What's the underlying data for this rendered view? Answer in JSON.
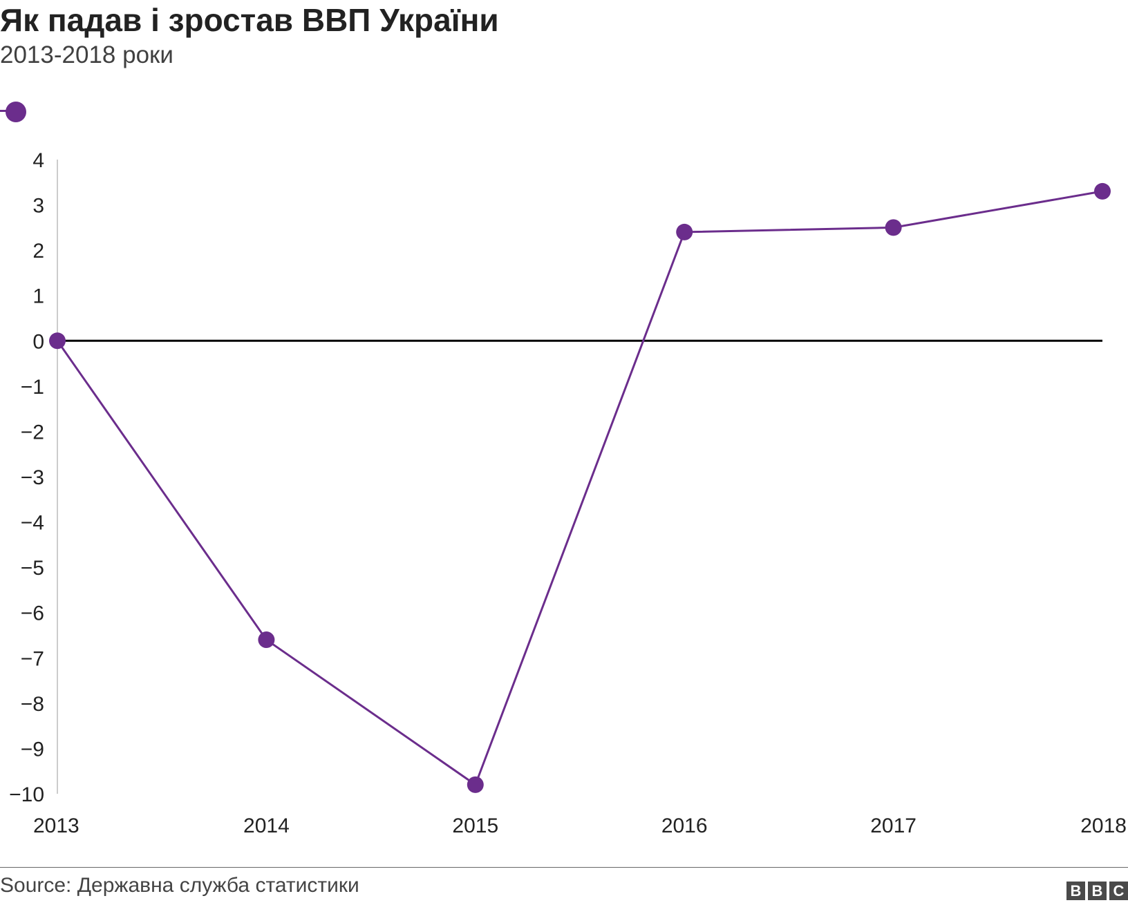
{
  "header": {
    "title": "Як падав і зростав ВВП України",
    "subtitle": "2013-2018 роки"
  },
  "footer": {
    "source": "Source: Державна служба статистики",
    "logo_letters": [
      "B",
      "B",
      "C"
    ]
  },
  "colors": {
    "series": "#6b2d8c",
    "zero_line": "#000000",
    "axis_line": "#cccccc",
    "text": "#222222"
  },
  "chart_data": {
    "type": "line",
    "title": "Як падав і зростав ВВП України",
    "subtitle": "2013-2018 роки",
    "xlabel": "",
    "ylabel": "",
    "x": [
      "2013",
      "2014",
      "2015",
      "2016",
      "2017",
      "2018"
    ],
    "series": [
      {
        "values": [
          0,
          -6.6,
          -9.8,
          2.4,
          2.5,
          3.3
        ]
      }
    ],
    "ylim": [
      -10,
      4
    ],
    "yticks": [
      4,
      3,
      2,
      1,
      0,
      -1,
      -2,
      -3,
      -4,
      -5,
      -6,
      -7,
      -8,
      -9,
      -10
    ],
    "ytick_labels": [
      "4",
      "3",
      "2",
      "1",
      "0",
      "−1",
      "−2",
      "−3",
      "−4",
      "−5",
      "−6",
      "−7",
      "−8",
      "−9",
      "−10"
    ],
    "grid": false,
    "legend": "top-left"
  }
}
